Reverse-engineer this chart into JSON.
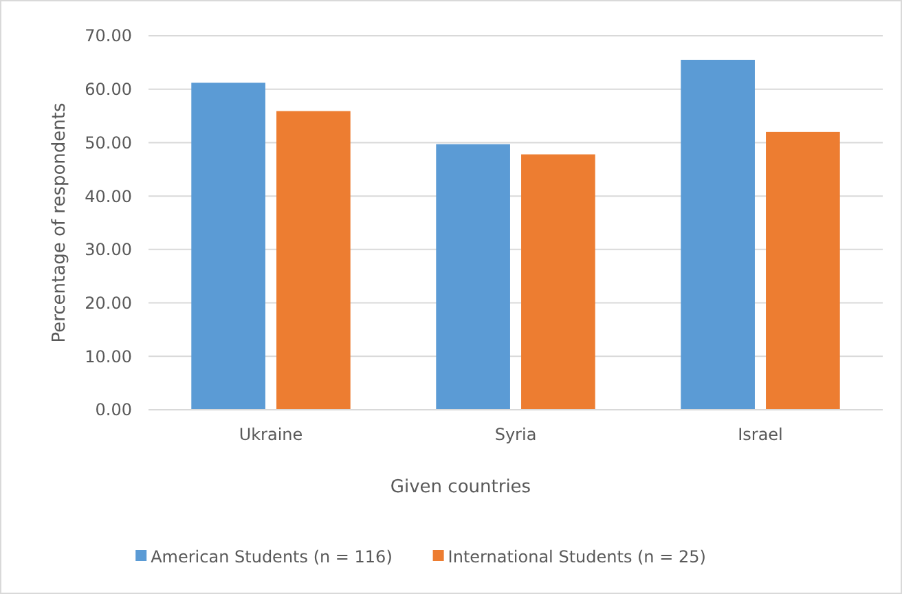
{
  "chart_data": {
    "type": "bar",
    "xlabel": "Given countries",
    "ylabel": "Percentage of respondents",
    "categories": [
      "Ukraine",
      "Syria",
      "Israel"
    ],
    "series": [
      {
        "name": "American Students (n = 116)",
        "color": "#5b9bd5",
        "values": [
          61.2,
          49.7,
          65.5
        ]
      },
      {
        "name": "International Students (n = 25)",
        "color": "#ed7d31",
        "values": [
          55.9,
          47.8,
          52.0
        ]
      }
    ],
    "ylim": [
      0,
      70
    ],
    "yticks": [
      {
        "value": 0,
        "label": "0.00"
      },
      {
        "value": 10,
        "label": "10.00"
      },
      {
        "value": 20,
        "label": "20.00"
      },
      {
        "value": 30,
        "label": "30.00"
      },
      {
        "value": 40,
        "label": "40.00"
      },
      {
        "value": 50,
        "label": "50.00"
      },
      {
        "value": 60,
        "label": "60.00"
      },
      {
        "value": 70,
        "label": "70.00"
      }
    ],
    "grid": "y",
    "legend": "bottom"
  }
}
